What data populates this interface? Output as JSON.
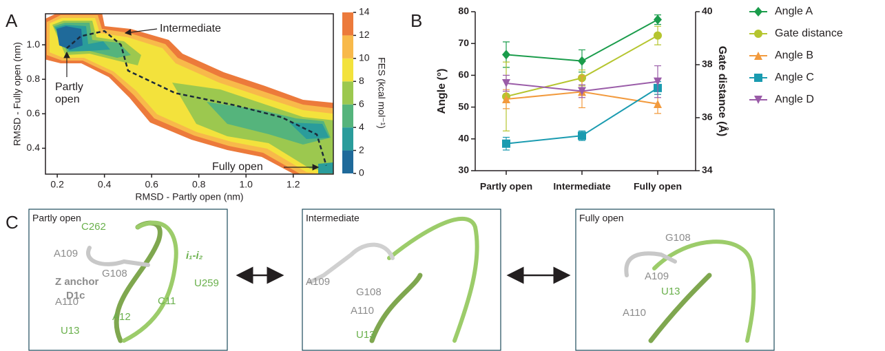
{
  "panel_labels": [
    "A",
    "B",
    "C"
  ],
  "chart_data": [
    {
      "type": "contour",
      "xlabel": "RMSD - Partly open (nm)",
      "ylabel": "RMSD - Fully open (nm)",
      "xlim": [
        0.15,
        1.37
      ],
      "ylim": [
        0.25,
        1.18
      ],
      "xticks": [
        0.2,
        0.4,
        0.6,
        0.8,
        {
          "value": 1,
          "label": "1.0"
        },
        1.2
      ],
      "yticks": [
        0.4,
        0.6,
        0.8,
        {
          "value": 1,
          "label": "1.0"
        }
      ],
      "colorbar_label": "FES (kcal mol⁻¹)",
      "clim": [
        0,
        14
      ],
      "cticks": [
        0,
        2,
        4,
        6,
        8,
        10,
        12,
        14
      ],
      "colors": [
        "#1f6a9a",
        "#2a9c9b",
        "#55b47c",
        "#9cc84f",
        "#f3e23c",
        "#f8b94a",
        "#ec7a3b"
      ],
      "path": {
        "x": [
          0.24,
          0.3,
          0.4,
          0.47,
          0.5,
          0.7,
          0.95,
          1.15,
          1.3,
          1.34
        ],
        "y": [
          0.98,
          1.05,
          1.08,
          1.0,
          0.85,
          0.72,
          0.65,
          0.58,
          0.48,
          0.3
        ]
      },
      "annotations": [
        {
          "lines": [
            "Intermediate"
          ]
        },
        {
          "lines": [
            "Partly",
            "open"
          ]
        },
        {
          "lines": [
            "Fully open"
          ]
        }
      ]
    },
    {
      "type": "line",
      "categories": [
        "Partly open",
        "Intermediate",
        "Fully open"
      ],
      "ylabel": "Angle (°)",
      "y2label": "Gate distance (Å)",
      "ylim": [
        30,
        80
      ],
      "yticks": [
        30,
        40,
        50,
        60,
        70,
        80
      ],
      "y2lim": [
        34,
        40
      ],
      "y2ticks": [
        34,
        36,
        38,
        40
      ],
      "series": [
        {
          "name": "Angle A",
          "color": "#1a9c4b",
          "marker": "diamond",
          "values": [
            66.5,
            64.5,
            77.5
          ],
          "errors": [
            4,
            3.5,
            1.5
          ]
        },
        {
          "name": "Gate distance",
          "color": "#b5c52f",
          "marker": "circle",
          "axis": "y2",
          "values": [
            36.8,
            37.5,
            39.1
          ],
          "errors": [
            1.3,
            0.3,
            0.35
          ]
        },
        {
          "name": "Angle B",
          "color": "#f29a3d",
          "marker": "triangle",
          "values": [
            52.5,
            54.8,
            51
          ],
          "errors": [
            3,
            5,
            3
          ]
        },
        {
          "name": "Angle C",
          "color": "#1a9bb0",
          "marker": "square",
          "values": [
            38.5,
            41,
            56
          ],
          "errors": [
            2,
            1.5,
            2
          ]
        },
        {
          "name": "Angle D",
          "color": "#9a5ca8",
          "marker": "triangle-down",
          "values": [
            57.5,
            55,
            58
          ],
          "errors": [
            2.5,
            2,
            5
          ]
        }
      ]
    }
  ],
  "panel_c": [
    {
      "title": "Partly open",
      "labels": [
        {
          "text": "C262",
          "color": "#6ab04c"
        },
        {
          "text": "A109",
          "color": "#8c8c8c"
        },
        {
          "text": "G108",
          "color": "#8c8c8c"
        },
        {
          "text": "Z anchor",
          "color": "#8c8c8c"
        },
        {
          "text": "D1c",
          "color": "#8c8c8c"
        },
        {
          "text": "i₁-i₂",
          "color": "#6ab04c"
        },
        {
          "text": "U259",
          "color": "#6ab04c"
        },
        {
          "text": "A110",
          "color": "#8c8c8c"
        },
        {
          "text": "C11",
          "color": "#6ab04c"
        },
        {
          "text": "A12",
          "color": "#6ab04c"
        },
        {
          "text": "U13",
          "color": "#6ab04c"
        }
      ]
    },
    {
      "title": "Intermediate",
      "labels": [
        {
          "text": "A109",
          "color": "#8c8c8c"
        },
        {
          "text": "G108",
          "color": "#8c8c8c"
        },
        {
          "text": "A110",
          "color": "#8c8c8c"
        },
        {
          "text": "U13",
          "color": "#6ab04c"
        }
      ]
    },
    {
      "title": "Fully open",
      "labels": [
        {
          "text": "G108",
          "color": "#8c8c8c"
        },
        {
          "text": "A109",
          "color": "#8c8c8c"
        },
        {
          "text": "U13",
          "color": "#6ab04c"
        },
        {
          "text": "A110",
          "color": "#8c8c8c"
        }
      ]
    }
  ]
}
